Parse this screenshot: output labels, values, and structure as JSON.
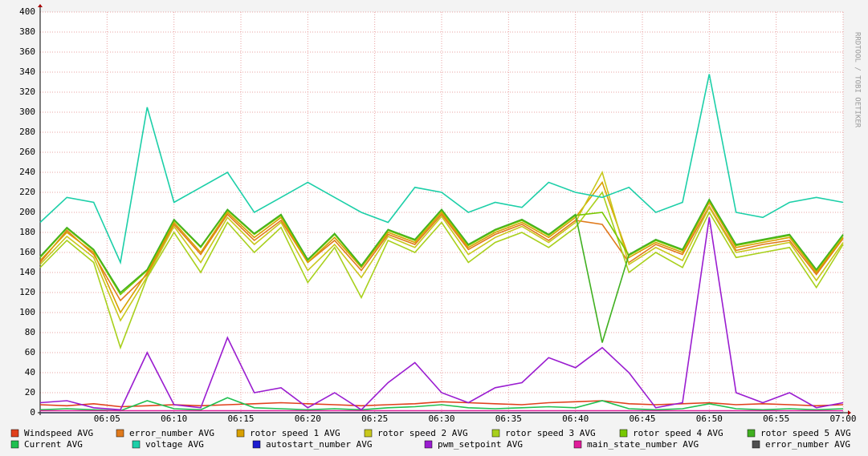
{
  "chart_data": {
    "type": "line",
    "watermark": "RRDTOOL / TOBI OETIKER",
    "x": [
      "06:00",
      "06:02",
      "06:04",
      "06:06",
      "06:08",
      "06:10",
      "06:12",
      "06:14",
      "06:16",
      "06:18",
      "06:20",
      "06:22",
      "06:24",
      "06:26",
      "06:28",
      "06:30",
      "06:32",
      "06:34",
      "06:36",
      "06:38",
      "06:40",
      "06:42",
      "06:44",
      "06:46",
      "06:48",
      "06:50",
      "06:52",
      "06:54",
      "06:56",
      "06:58",
      "07:00"
    ],
    "xlim": [
      "06:00",
      "07:00"
    ],
    "xticks": [
      "06:05",
      "06:10",
      "06:15",
      "06:20",
      "06:25",
      "06:30",
      "06:35",
      "06:40",
      "06:45",
      "06:50",
      "06:55",
      "07:00"
    ],
    "ylim": [
      0,
      400
    ],
    "yticks": [
      0,
      20,
      40,
      60,
      80,
      100,
      120,
      140,
      160,
      180,
      200,
      220,
      240,
      260,
      280,
      300,
      320,
      340,
      360,
      380,
      400
    ],
    "grid": true,
    "series": [
      {
        "name": "Windspeed AVG",
        "color": "#e0401c",
        "values": [
          8,
          7,
          9,
          6,
          7,
          8,
          7,
          8,
          9,
          10,
          9,
          8,
          7,
          8,
          9,
          11,
          10,
          9,
          8,
          10,
          11,
          12,
          9,
          8,
          9,
          10,
          8,
          9,
          8,
          7,
          8
        ]
      },
      {
        "name": "error_number AVG",
        "color": "#e07a1c",
        "values": [
          150,
          182,
          158,
          112,
          138,
          188,
          158,
          198,
          172,
          192,
          150,
          172,
          142,
          178,
          168,
          198,
          163,
          178,
          188,
          172,
          192,
          188,
          150,
          168,
          158,
          206,
          162,
          168,
          172,
          138,
          174
        ]
      },
      {
        "name": "rotor speed 1 AVG",
        "color": "#d8a000",
        "values": [
          152,
          180,
          160,
          100,
          140,
          190,
          160,
          200,
          175,
          195,
          150,
          175,
          145,
          180,
          170,
          200,
          165,
          180,
          190,
          175,
          195,
          230,
          155,
          170,
          160,
          210,
          165,
          170,
          175,
          140,
          175
        ]
      },
      {
        "name": "rotor speed 2 AVG",
        "color": "#c8c81c",
        "values": [
          148,
          176,
          155,
          92,
          136,
          186,
          150,
          195,
          168,
          190,
          142,
          168,
          135,
          176,
          165,
          196,
          158,
          175,
          186,
          170,
          190,
          240,
          148,
          165,
          152,
          205,
          160,
          165,
          170,
          132,
          170
        ]
      },
      {
        "name": "rotor speed 3 AVG",
        "color": "#a8d01c",
        "values": [
          145,
          172,
          150,
          65,
          135,
          180,
          140,
          190,
          160,
          185,
          130,
          165,
          115,
          172,
          160,
          190,
          150,
          170,
          180,
          165,
          185,
          220,
          140,
          160,
          145,
          200,
          155,
          160,
          165,
          125,
          168
        ]
      },
      {
        "name": "rotor speed 4 AVG",
        "color": "#78c800",
        "values": [
          155,
          184,
          162,
          118,
          142,
          192,
          165,
          202,
          178,
          197,
          152,
          178,
          146,
          182,
          172,
          202,
          167,
          182,
          192,
          177,
          197,
          200,
          157,
          172,
          162,
          212,
          167,
          172,
          177,
          142,
          177
        ]
      },
      {
        "name": "rotor speed 5 AVG",
        "color": "#40b020",
        "values": [
          156,
          185,
          163,
          120,
          143,
          193,
          166,
          203,
          179,
          198,
          153,
          179,
          147,
          183,
          173,
          203,
          168,
          183,
          193,
          178,
          198,
          70,
          158,
          173,
          163,
          213,
          168,
          173,
          178,
          143,
          178
        ]
      },
      {
        "name": "Current AVG",
        "color": "#20c050",
        "values": [
          3,
          4,
          3,
          2,
          12,
          4,
          3,
          15,
          5,
          4,
          3,
          4,
          3,
          5,
          6,
          8,
          5,
          4,
          5,
          6,
          5,
          12,
          4,
          3,
          4,
          9,
          4,
          3,
          4,
          3,
          4
        ]
      },
      {
        "name": "voltage AVG",
        "color": "#1ccfa8",
        "values": [
          190,
          215,
          210,
          150,
          305,
          210,
          225,
          240,
          200,
          215,
          230,
          215,
          200,
          190,
          225,
          220,
          200,
          210,
          205,
          230,
          220,
          215,
          225,
          200,
          210,
          338,
          200,
          195,
          210,
          215,
          210
        ]
      },
      {
        "name": "autostart_number AVG",
        "color": "#1c1cd0",
        "values": [
          0,
          0,
          0,
          0,
          0,
          0,
          0,
          0,
          0,
          0,
          0,
          0,
          0,
          0,
          0,
          0,
          0,
          0,
          0,
          0,
          0,
          0,
          0,
          0,
          0,
          0,
          0,
          0,
          0,
          0,
          0
        ]
      },
      {
        "name": "pwm_setpoint AVG",
        "color": "#9a1cd0",
        "values": [
          10,
          12,
          5,
          3,
          60,
          8,
          5,
          75,
          20,
          25,
          5,
          20,
          3,
          30,
          50,
          20,
          10,
          25,
          30,
          55,
          45,
          65,
          40,
          5,
          10,
          195,
          20,
          10,
          20,
          5,
          10
        ]
      },
      {
        "name": "main_state_number AVG",
        "color": "#e01c9a",
        "values": [
          2,
          2,
          2,
          2,
          2,
          2,
          2,
          2,
          2,
          2,
          2,
          2,
          2,
          2,
          2,
          2,
          2,
          2,
          2,
          2,
          2,
          2,
          2,
          2,
          2,
          2,
          2,
          2,
          2,
          2,
          2
        ]
      },
      {
        "name": "error_number AVG",
        "color": "#505050",
        "values": [
          0,
          0,
          0,
          0,
          0,
          0,
          0,
          0,
          0,
          0,
          0,
          0,
          0,
          0,
          0,
          0,
          0,
          0,
          0,
          0,
          0,
          0,
          0,
          0,
          0,
          0,
          0,
          0,
          0,
          0,
          0
        ]
      }
    ]
  }
}
